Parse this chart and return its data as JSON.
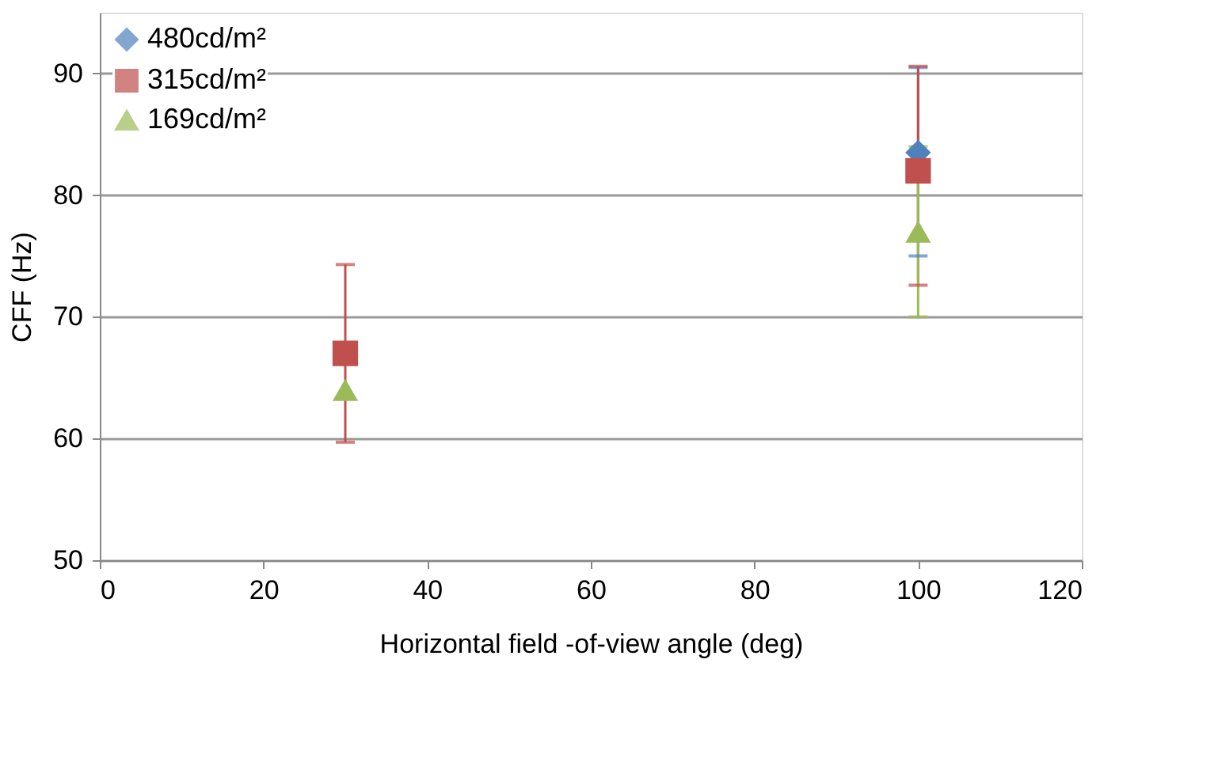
{
  "chart_data": {
    "type": "scatter",
    "xlabel": "Horizontal field -of-view angle (deg)",
    "ylabel": "CFF (Hz)",
    "x": [
      30,
      100
    ],
    "series": [
      {
        "name": "480cd/m²",
        "color": "#4f81bd",
        "marker": "diamond",
        "values": [
          null,
          83.5
        ],
        "errors": [
          null,
          [
            75,
            90.5
          ]
        ]
      },
      {
        "name": "315cd/m²",
        "color": "#c0504d",
        "marker": "square",
        "values": [
          67,
          82
        ],
        "errors": [
          [
            59.7,
            74.3
          ],
          [
            72.6,
            90.6
          ]
        ]
      },
      {
        "name": "169cd/m²",
        "color": "#9bbb59",
        "marker": "triangle",
        "values": [
          64,
          77
        ],
        "errors": [
          null,
          [
            70,
            84
          ]
        ]
      }
    ],
    "xlim": [
      0,
      120
    ],
    "xticks": [
      0,
      20,
      40,
      60,
      80,
      100,
      120
    ],
    "ylim": [
      50,
      95
    ],
    "yticks": [
      50,
      60,
      70,
      80,
      90
    ],
    "grid": "y",
    "legend": "top left"
  }
}
